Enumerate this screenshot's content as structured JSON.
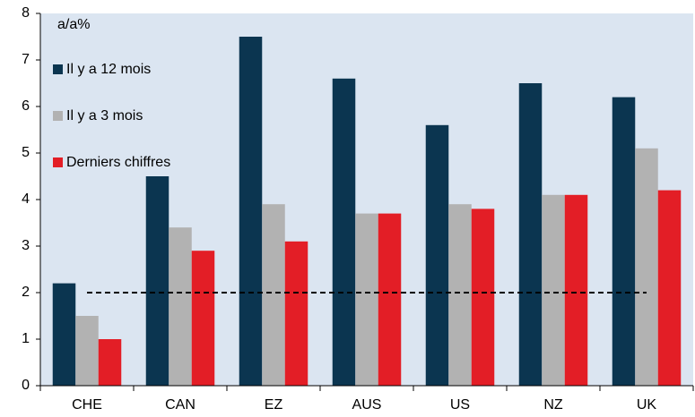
{
  "chart_data": {
    "type": "bar",
    "unit_label": "a/a%",
    "categories": [
      "CHE",
      "CAN",
      "EZ",
      "AUS",
      "US",
      "NZ",
      "UK"
    ],
    "series": [
      {
        "name": "Il y a 12 mois",
        "color": "#0b3550",
        "values": [
          2.2,
          4.5,
          7.5,
          6.6,
          5.6,
          6.5,
          6.2
        ]
      },
      {
        "name": "Il y a 3 mois",
        "color": "#b2b2b2",
        "values": [
          1.5,
          3.4,
          3.9,
          3.7,
          3.9,
          4.1,
          5.1
        ]
      },
      {
        "name": "Derniers chiffres",
        "color": "#e31e26",
        "values": [
          1.0,
          2.9,
          3.1,
          3.7,
          3.8,
          4.1,
          4.2
        ]
      }
    ],
    "reference_line": 2,
    "ylim": [
      0,
      8
    ],
    "yticks": [
      0,
      1,
      2,
      3,
      4,
      5,
      6,
      7,
      8
    ],
    "background": "#dbe5f1"
  }
}
